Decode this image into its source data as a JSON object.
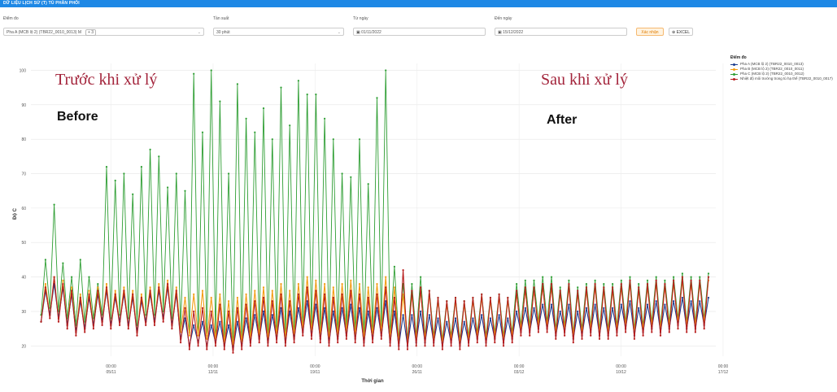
{
  "header": {
    "title": "DỮ LIỆU LỊCH SỬ (T) TỦ PHÂN PHỐI"
  },
  "filters": {
    "point_label": "Điểm đo",
    "point_value": "Pha A (MCB lộ 2) (TBR22_0010_0013) M",
    "point_extra_tag": "+ 3",
    "freq_label": "Tần suất",
    "freq_value": "30 phút",
    "from_label": "Từ ngày",
    "from_value": "01/11/2022",
    "to_label": "Đến ngày",
    "to_value": "15/12/2022",
    "confirm_label": "Xác nhận",
    "excel_label": "EXCEL"
  },
  "icons": {
    "calendar": "calendar-icon",
    "excel": "download-icon",
    "dropdown": "chevron-down-icon"
  },
  "annotations": {
    "before_vi": "Trước khi xử lý",
    "before_en": "Before",
    "after_vi": "Sau khi xử lý",
    "after_en": "After"
  },
  "chart_data": {
    "type": "line",
    "ylabel": "Độ C",
    "xlabel": "Thời gian",
    "ylim": [
      17,
      102
    ],
    "xlim": [
      -5.5,
      41.5
    ],
    "yticks": [
      20,
      30,
      40,
      50,
      60,
      70,
      80,
      90,
      100
    ],
    "xticks": [
      {
        "x": 0,
        "time": "00:00",
        "date": "05/11"
      },
      {
        "x": 7,
        "time": "00:00",
        "date": "12/11"
      },
      {
        "x": 14,
        "time": "00:00",
        "date": "19/11"
      },
      {
        "x": 21,
        "time": "00:00",
        "date": "26/11"
      },
      {
        "x": 28,
        "time": "00:00",
        "date": "03/12"
      },
      {
        "x": 35,
        "time": "00:00",
        "date": "10/12"
      },
      {
        "x": 42,
        "time": "00:00",
        "date": "17/12"
      }
    ],
    "grid": true,
    "legend_title": "Điểm đo",
    "legend_position": "right",
    "series": [
      {
        "name": "Pha A (MCB lộ 2) (TBR22_0010_0013)",
        "color": "#1a3c8f",
        "min": [
          27,
          29,
          28,
          26,
          24,
          25,
          26,
          27,
          26,
          27,
          26,
          24,
          27,
          27,
          28,
          26,
          22,
          20,
          21,
          20,
          21,
          20,
          19,
          20,
          21,
          22,
          21,
          22,
          21,
          22,
          24,
          23,
          22,
          21,
          22,
          23,
          22,
          21,
          22,
          23,
          21,
          20,
          20,
          21,
          21,
          21,
          20,
          21,
          20,
          21,
          22,
          21,
          22,
          21,
          22,
          24,
          24,
          25,
          25,
          23,
          24,
          22,
          23,
          24,
          23,
          23,
          24,
          25,
          23,
          24,
          25,
          24,
          25,
          26,
          25,
          25,
          26
        ],
        "max": [
          36,
          38,
          37,
          35,
          33,
          34,
          35,
          36,
          34,
          35,
          34,
          33,
          35,
          36,
          37,
          35,
          28,
          26,
          27,
          26,
          27,
          26,
          27,
          28,
          29,
          30,
          29,
          31,
          30,
          31,
          33,
          32,
          31,
          30,
          31,
          32,
          31,
          30,
          31,
          33,
          30,
          29,
          29,
          30,
          29,
          28,
          27,
          28,
          27,
          28,
          29,
          28,
          29,
          28,
          30,
          31,
          31,
          32,
          32,
          30,
          32,
          30,
          31,
          32,
          31,
          31,
          32,
          33,
          31,
          32,
          33,
          32,
          33,
          34,
          33,
          33,
          34
        ]
      },
      {
        "name": "Pha B (MCB lộ 2) (TBR22_0010_0011)",
        "color": "#f39c12",
        "min": [
          27,
          29,
          28,
          26,
          24,
          25,
          26,
          27,
          26,
          27,
          26,
          24,
          27,
          27,
          28,
          26,
          24,
          23,
          23,
          22,
          22,
          21,
          20,
          21,
          22,
          23,
          22,
          23,
          22,
          23,
          25,
          24,
          23,
          22,
          23,
          24,
          23,
          22,
          23,
          24,
          22,
          21,
          21,
          22,
          22,
          22,
          21,
          22,
          21,
          22,
          23,
          22,
          23,
          22,
          23,
          25,
          25,
          26,
          26,
          24,
          25,
          23,
          24,
          25,
          24,
          24,
          25,
          26,
          24,
          25,
          26,
          25,
          26,
          27,
          26,
          26,
          27
        ],
        "max": [
          38,
          40,
          39,
          37,
          35,
          36,
          37,
          38,
          36,
          37,
          36,
          35,
          37,
          38,
          39,
          37,
          34,
          35,
          36,
          34,
          35,
          33,
          34,
          35,
          36,
          37,
          36,
          38,
          36,
          38,
          40,
          39,
          38,
          37,
          38,
          39,
          38,
          37,
          38,
          40,
          37,
          35,
          35,
          36,
          35,
          33,
          32,
          33,
          32,
          33,
          34,
          33,
          34,
          33,
          35,
          36,
          36,
          37,
          37,
          35,
          37,
          35,
          36,
          37,
          36,
          36,
          37,
          38,
          36,
          37,
          38,
          37,
          38,
          39,
          38,
          38,
          39
        ]
      },
      {
        "name": "Pha C (MCB lộ 2) (TBR22_0010_0012)",
        "color": "#2e9e33",
        "min": [
          29,
          31,
          30,
          28,
          26,
          27,
          28,
          29,
          28,
          29,
          28,
          26,
          29,
          29,
          30,
          28,
          25,
          24,
          24,
          23,
          23,
          22,
          21,
          22,
          23,
          24,
          23,
          24,
          23,
          24,
          26,
          25,
          24,
          23,
          24,
          25,
          24,
          23,
          24,
          25,
          23,
          22,
          22,
          23,
          23,
          23,
          22,
          23,
          22,
          23,
          24,
          23,
          24,
          23,
          24,
          26,
          26,
          27,
          27,
          25,
          26,
          24,
          25,
          26,
          25,
          25,
          26,
          27,
          25,
          26,
          27,
          26,
          27,
          28,
          27,
          27,
          28
        ],
        "max": [
          45,
          61,
          44,
          40,
          45,
          40,
          38,
          72,
          68,
          70,
          64,
          72,
          77,
          75,
          66,
          70,
          65,
          99,
          82,
          100,
          91,
          70,
          96,
          86,
          82,
          89,
          80,
          95,
          84,
          97,
          93,
          93,
          86,
          80,
          70,
          69,
          80,
          67,
          92,
          100,
          43,
          38,
          38,
          40,
          36,
          34,
          33,
          34,
          33,
          34,
          35,
          34,
          35,
          34,
          38,
          39,
          39,
          40,
          40,
          37,
          39,
          37,
          38,
          39,
          38,
          38,
          39,
          40,
          38,
          39,
          40,
          39,
          40,
          41,
          40,
          40,
          41
        ]
      },
      {
        "name": "Nhiệt độ môi trường trong tủ hạ thế (TBR22_0010_0017)",
        "color": "#b71c1c",
        "min": [
          27,
          28,
          27,
          25,
          23,
          24,
          25,
          26,
          25,
          26,
          25,
          23,
          26,
          26,
          27,
          25,
          21,
          19,
          20,
          19,
          20,
          19,
          18,
          19,
          20,
          21,
          20,
          21,
          20,
          21,
          23,
          22,
          21,
          20,
          21,
          22,
          21,
          20,
          21,
          22,
          20,
          19,
          19,
          20,
          20,
          20,
          19,
          20,
          19,
          20,
          21,
          20,
          21,
          20,
          21,
          23,
          23,
          24,
          24,
          22,
          23,
          21,
          22,
          23,
          22,
          22,
          23,
          24,
          22,
          23,
          24,
          23,
          24,
          25,
          24,
          24,
          25
        ],
        "max": [
          37,
          40,
          38,
          36,
          34,
          35,
          36,
          37,
          35,
          36,
          35,
          34,
          36,
          37,
          38,
          36,
          31,
          30,
          31,
          30,
          32,
          30,
          31,
          32,
          33,
          34,
          33,
          35,
          33,
          35,
          37,
          36,
          35,
          34,
          35,
          36,
          35,
          34,
          35,
          37,
          34,
          42,
          36,
          37,
          36,
          34,
          33,
          34,
          33,
          34,
          35,
          34,
          35,
          34,
          36,
          37,
          37,
          38,
          38,
          36,
          38,
          36,
          37,
          38,
          37,
          37,
          38,
          39,
          37,
          38,
          39,
          38,
          39,
          40,
          39,
          39,
          40
        ]
      }
    ]
  }
}
